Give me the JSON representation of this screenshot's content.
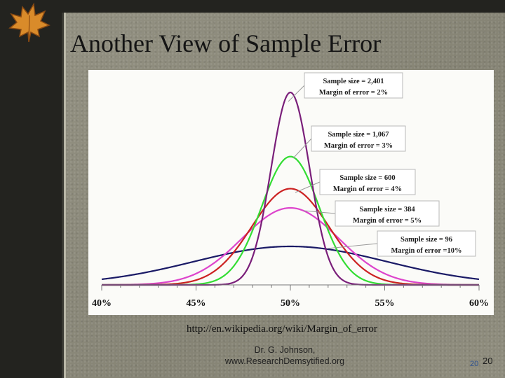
{
  "slide": {
    "title": "Another View of Sample Error",
    "source_url": "http://en.wikipedia.org/wiki/Margin_of_error",
    "footer_author_line1": "Dr. G. Johnson,",
    "footer_author_line2": "www.ResearchDemsytified.org",
    "page_number": "20",
    "page_number_small": "20"
  },
  "chart_data": {
    "type": "line",
    "title": "",
    "xlabel": "",
    "ylabel": "",
    "xlim": [
      40,
      60
    ],
    "x_ticks": [
      40,
      45,
      50,
      55,
      60
    ],
    "x_tick_labels": [
      "40%",
      "45%",
      "50%",
      "55%",
      "60%"
    ],
    "grid": false,
    "center": 50,
    "series": [
      {
        "label_lines": [
          "Sample size = 2,401",
          "Margin of error = 2%"
        ],
        "sample_size": 2401,
        "margin_of_error": 2,
        "color": "#7a1f7a"
      },
      {
        "label_lines": [
          "Sample size = 1,067",
          "Margin of error = 3%"
        ],
        "sample_size": 1067,
        "margin_of_error": 3,
        "color": "#33dd33"
      },
      {
        "label_lines": [
          "Sample size = 600",
          "Margin of error = 4%"
        ],
        "sample_size": 600,
        "margin_of_error": 4,
        "color": "#cc2222"
      },
      {
        "label_lines": [
          "Sample size = 384",
          "Margin of error = 5%"
        ],
        "sample_size": 384,
        "margin_of_error": 5,
        "color": "#dd44cc"
      },
      {
        "label_lines": [
          "Sample size = 96",
          "Margin of error =10%"
        ],
        "sample_size": 96,
        "margin_of_error": 10,
        "color": "#1a1a66"
      }
    ]
  }
}
